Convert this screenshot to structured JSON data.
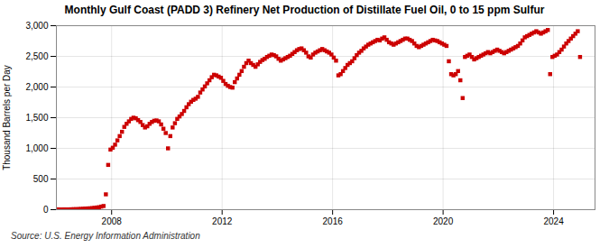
{
  "chart_data": {
    "type": "scatter",
    "title": "Monthly Gulf Coast (PADD 3) Refinery Net Production of Distillate Fuel Oil, 0 to 15 ppm Sulfur",
    "ylabel": "Thousand Barrels per Day",
    "annotations": [
      "Source: U.S. Energy Information Administration"
    ],
    "color": "#cc0000",
    "marker": "square",
    "grid": true,
    "xlim": [
      2006.0,
      2025.5
    ],
    "xticks": [
      2008,
      2012,
      2016,
      2020,
      2024
    ],
    "ylim": [
      0,
      3000
    ],
    "yticks": [
      0,
      500,
      {
        "value": 1000,
        "label": "1,000"
      },
      {
        "value": 1500,
        "label": "1,500"
      },
      {
        "value": 2000,
        "label": "2,000"
      },
      {
        "value": 2500,
        "label": "2,500"
      },
      {
        "value": 3000,
        "label": "3,000"
      }
    ],
    "x": [
      2006.0416666666667,
      2006.125,
      2006.2083333333333,
      2006.2916666666667,
      2006.375,
      2006.4583333333333,
      2006.5416666666667,
      2006.625,
      2006.7083333333333,
      2006.7916666666667,
      2006.875,
      2006.9583333333333,
      2007.0416666666667,
      2007.125,
      2007.2083333333333,
      2007.2916666666667,
      2007.375,
      2007.4583333333333,
      2007.5416666666667,
      2007.625,
      2007.7083333333333,
      2007.7916666666667,
      2007.875,
      2007.9583333333333,
      2008.0416666666667,
      2008.125,
      2008.2083333333333,
      2008.2916666666667,
      2008.375,
      2008.4583333333333,
      2008.5416666666667,
      2008.625,
      2008.7083333333333,
      2008.7916666666667,
      2008.875,
      2008.9583333333333,
      2009.0416666666667,
      2009.125,
      2009.2083333333333,
      2009.2916666666667,
      2009.375,
      2009.4583333333333,
      2009.5416666666667,
      2009.625,
      2009.7083333333333,
      2009.7916666666667,
      2009.875,
      2009.9583333333333,
      2010.0416666666667,
      2010.125,
      2010.2083333333333,
      2010.2916666666667,
      2010.375,
      2010.4583333333333,
      2010.5416666666667,
      2010.625,
      2010.7083333333333,
      2010.7916666666667,
      2010.875,
      2010.9583333333333,
      2011.0416666666667,
      2011.125,
      2011.2083333333333,
      2011.2916666666667,
      2011.375,
      2011.4583333333333,
      2011.5416666666667,
      2011.625,
      2011.7083333333333,
      2011.7916666666667,
      2011.875,
      2011.9583333333333,
      2012.0416666666667,
      2012.125,
      2012.2083333333333,
      2012.2916666666667,
      2012.375,
      2012.4583333333333,
      2012.5416666666667,
      2012.625,
      2012.7083333333333,
      2012.7916666666667,
      2012.875,
      2012.9583333333333,
      2013.0416666666667,
      2013.125,
      2013.2083333333333,
      2013.2916666666667,
      2013.375,
      2013.4583333333333,
      2013.5416666666667,
      2013.625,
      2013.7083333333333,
      2013.7916666666667,
      2013.875,
      2013.9583333333333,
      2014.0416666666667,
      2014.125,
      2014.2083333333333,
      2014.2916666666667,
      2014.375,
      2014.4583333333333,
      2014.5416666666667,
      2014.625,
      2014.7083333333333,
      2014.7916666666667,
      2014.875,
      2014.9583333333333,
      2015.0416666666667,
      2015.125,
      2015.2083333333333,
      2015.2916666666667,
      2015.375,
      2015.4583333333333,
      2015.5416666666667,
      2015.625,
      2015.7083333333333,
      2015.7916666666667,
      2015.875,
      2015.9583333333333,
      2016.0416666666667,
      2016.125,
      2016.2083333333333,
      2016.2916666666667,
      2016.375,
      2016.4583333333333,
      2016.5416666666667,
      2016.625,
      2016.7083333333333,
      2016.7916666666667,
      2016.875,
      2016.9583333333333,
      2017.0416666666667,
      2017.125,
      2017.2083333333333,
      2017.2916666666667,
      2017.375,
      2017.4583333333333,
      2017.5416666666667,
      2017.625,
      2017.7083333333333,
      2017.7916666666667,
      2017.875,
      2017.9583333333333,
      2018.0416666666667,
      2018.125,
      2018.2083333333333,
      2018.2916666666667,
      2018.375,
      2018.4583333333333,
      2018.5416666666667,
      2018.625,
      2018.7083333333333,
      2018.7916666666667,
      2018.875,
      2018.9583333333333,
      2019.0416666666667,
      2019.125,
      2019.2083333333333,
      2019.2916666666667,
      2019.375,
      2019.4583333333333,
      2019.5416666666667,
      2019.625,
      2019.7083333333333,
      2019.7916666666667,
      2019.875,
      2019.9583333333333,
      2020.0416666666667,
      2020.125,
      2020.2083333333333,
      2020.2916666666667,
      2020.375,
      2020.4583333333333,
      2020.5416666666667,
      2020.625,
      2020.7083333333333,
      2020.7916666666667,
      2020.875,
      2020.9583333333333,
      2021.0416666666667,
      2021.125,
      2021.2083333333333,
      2021.2916666666667,
      2021.375,
      2021.4583333333333,
      2021.5416666666667,
      2021.625,
      2021.7083333333333,
      2021.7916666666667,
      2021.875,
      2021.9583333333333,
      2022.0416666666667,
      2022.125,
      2022.2083333333333,
      2022.2916666666667,
      2022.375,
      2022.4583333333333,
      2022.5416666666667,
      2022.625,
      2022.7083333333333,
      2022.7916666666667,
      2022.875,
      2022.9583333333333,
      2023.0416666666667,
      2023.125,
      2023.2083333333333,
      2023.2916666666667,
      2023.375,
      2023.4583333333333,
      2023.5416666666667,
      2023.625,
      2023.7083333333333,
      2023.7916666666667,
      2023.875,
      2023.9583333333333,
      2024.0416666666667,
      2024.125,
      2024.2083333333333,
      2024.2916666666667,
      2024.375,
      2024.4583333333333,
      2024.5416666666667,
      2024.625,
      2024.7083333333333,
      2024.7916666666667,
      2024.875,
      2024.9583333333333
    ],
    "values": [
      5,
      4,
      4,
      5,
      4,
      5,
      6,
      8,
      8,
      10,
      12,
      15,
      18,
      20,
      22,
      25,
      30,
      35,
      40,
      50,
      60,
      250,
      730,
      980,
      1010,
      1060,
      1130,
      1200,
      1270,
      1350,
      1400,
      1440,
      1480,
      1500,
      1490,
      1460,
      1430,
      1380,
      1340,
      1360,
      1400,
      1430,
      1450,
      1455,
      1440,
      1390,
      1320,
      1250,
      1000,
      1200,
      1340,
      1410,
      1480,
      1520,
      1560,
      1610,
      1670,
      1720,
      1760,
      1790,
      1810,
      1840,
      1910,
      1960,
      2010,
      2060,
      2110,
      2160,
      2200,
      2190,
      2170,
      2150,
      2100,
      2050,
      2020,
      2000,
      1990,
      2080,
      2140,
      2200,
      2260,
      2330,
      2390,
      2430,
      2390,
      2360,
      2330,
      2370,
      2410,
      2440,
      2460,
      2490,
      2510,
      2530,
      2520,
      2500,
      2460,
      2430,
      2450,
      2470,
      2490,
      2510,
      2540,
      2570,
      2600,
      2620,
      2630,
      2600,
      2560,
      2500,
      2480,
      2530,
      2560,
      2580,
      2600,
      2620,
      2600,
      2580,
      2560,
      2530,
      2480,
      2430,
      2190,
      2210,
      2260,
      2310,
      2360,
      2390,
      2420,
      2470,
      2520,
      2560,
      2590,
      2630,
      2660,
      2690,
      2710,
      2730,
      2750,
      2770,
      2760,
      2790,
      2810,
      2770,
      2730,
      2710,
      2690,
      2710,
      2730,
      2750,
      2770,
      2790,
      2790,
      2770,
      2750,
      2710,
      2670,
      2650,
      2670,
      2690,
      2710,
      2730,
      2750,
      2770,
      2760,
      2750,
      2730,
      2710,
      2690,
      2670,
      2420,
      2210,
      2190,
      2210,
      2260,
      2110,
      1820,
      2490,
      2510,
      2530,
      2490,
      2450,
      2470,
      2490,
      2510,
      2530,
      2550,
      2570,
      2550,
      2570,
      2590,
      2610,
      2590,
      2570,
      2550,
      2570,
      2590,
      2610,
      2630,
      2650,
      2670,
      2710,
      2760,
      2810,
      2830,
      2850,
      2870,
      2890,
      2910,
      2890,
      2870,
      2890,
      2910,
      2930,
      2210,
      2490,
      2510,
      2530,
      2570,
      2610,
      2660,
      2710,
      2750,
      2790,
      2830,
      2870,
      2910,
      2490
    ]
  }
}
